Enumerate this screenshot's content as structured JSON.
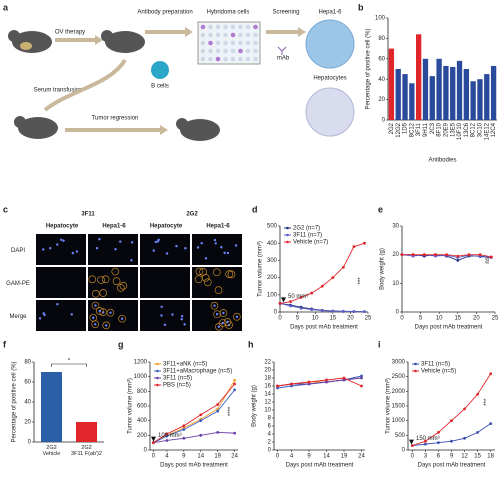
{
  "diagram": {
    "panel": "a",
    "labels": [
      "OV therapy",
      "Antibody preparation",
      "Hybridoma cells",
      "B cells",
      "Screening",
      "mAb",
      "Hepa1-6",
      "Hepatocytes",
      "Serum transfusion",
      "Tumor regression"
    ]
  },
  "images": {
    "panel": "c",
    "groups": [
      "3F11",
      "2G2"
    ],
    "columns": [
      "Hepatocyte",
      "Hepa1-6",
      "Hepatocyte",
      "Hepa1-6"
    ],
    "rows": [
      "DAPI",
      "GAM-PE",
      "Merge"
    ]
  },
  "chart_data": [
    {
      "panel": "b",
      "type": "bar",
      "ylabel": "Percentage of positive cell (%)",
      "xlabel": "Antibodies",
      "categories": [
        "2G2",
        "12G2",
        "1D5",
        "8C12",
        "3F11",
        "9H11",
        "2C3",
        "8F10",
        "20E9",
        "13E5",
        "10F10",
        "13C6",
        "8C12",
        "3C10",
        "14E12",
        "12C4"
      ],
      "values": [
        70,
        50,
        45,
        36,
        84,
        60,
        43,
        60,
        53,
        52,
        58,
        50,
        38,
        40,
        45,
        53
      ],
      "colors": [
        "#e0262b",
        "#2a4a9c",
        "#2a4a9c",
        "#2a4a9c",
        "#e0262b",
        "#2a4a9c",
        "#2a4a9c",
        "#2a4a9c",
        "#2a4a9c",
        "#2a4a9c",
        "#2a4a9c",
        "#2a4a9c",
        "#2a4a9c",
        "#2a4a9c",
        "#2a4a9c",
        "#2a4a9c"
      ],
      "ylim": [
        0,
        100
      ],
      "yticks": [
        0,
        20,
        40,
        60,
        80,
        100
      ]
    },
    {
      "panel": "d",
      "type": "line",
      "ylabel": "Tumor volume (mm³)",
      "xlabel": "Days post mAb treatment",
      "x": [
        0,
        3,
        6,
        9,
        12,
        15,
        18,
        21,
        24
      ],
      "series": [
        {
          "name": "2G2 (n=7)",
          "color": "#1f2d7a",
          "values": [
            50,
            40,
            28,
            18,
            10,
            6,
            4,
            3,
            2
          ]
        },
        {
          "name": "3F11 (n=7)",
          "color": "#5b5fc7",
          "values": [
            50,
            35,
            22,
            14,
            8,
            5,
            3,
            2,
            2
          ]
        },
        {
          "name": "Vehicle (n=7)",
          "color": "#e0262b",
          "values": [
            50,
            60,
            85,
            110,
            150,
            200,
            260,
            380,
            400
          ]
        }
      ],
      "xlim": [
        0,
        25
      ],
      "xticks": [
        0,
        5,
        10,
        15,
        20,
        25
      ],
      "ylim": [
        0,
        500
      ],
      "yticks": [
        0,
        100,
        200,
        300,
        400,
        500
      ],
      "legend": "upper left",
      "baseline_label": "50 mm³",
      "significance": "***"
    },
    {
      "panel": "e",
      "type": "line",
      "ylabel": "Body weight (g)",
      "xlabel": "Days post mAb treatment",
      "x": [
        0,
        3,
        6,
        9,
        12,
        15,
        18,
        21,
        24
      ],
      "series": [
        {
          "name": "2G2 (n=7)",
          "color": "#1f2d7a",
          "values": [
            20,
            20,
            19.5,
            20,
            19.5,
            18,
            19.5,
            19.5,
            19
          ]
        },
        {
          "name": "3F11 (n=7)",
          "color": "#5b5fc7",
          "values": [
            20,
            19.5,
            20,
            19.5,
            19.8,
            19,
            19.8,
            19.3,
            19
          ]
        },
        {
          "name": "Vehicle (n=7)",
          "color": "#e0262b",
          "values": [
            20,
            20,
            20,
            20,
            20,
            19.5,
            20,
            20,
            19.2
          ]
        }
      ],
      "xlim": [
        0,
        25
      ],
      "xticks": [
        0,
        5,
        10,
        15,
        20,
        25
      ],
      "ylim": [
        0,
        30
      ],
      "yticks": [
        0,
        10,
        20,
        30
      ],
      "significance": "ns"
    },
    {
      "panel": "f",
      "type": "bar",
      "ylabel": "Percentage of positive cell (%)",
      "categories": [
        "2G2\nVehicle",
        "2G2\n3F11 F(ab')2"
      ],
      "values": [
        70,
        20
      ],
      "colors": [
        "#2a5fa8",
        "#e0262b"
      ],
      "ylim": [
        0,
        80
      ],
      "yticks": [
        0,
        20,
        40,
        60,
        80
      ],
      "significance": "*"
    },
    {
      "panel": "g",
      "type": "line",
      "ylabel": "Tumor volume (mm³)",
      "xlabel": "Days post mAb treatment",
      "x": [
        0,
        4,
        9,
        14,
        19,
        24
      ],
      "series": [
        {
          "name": "3F11+aNK (n=5)",
          "color": "#f0a030",
          "values": [
            100,
            200,
            300,
            420,
            560,
            950
          ]
        },
        {
          "name": "3F11+aMacrophage (n=5)",
          "color": "#3a5fc0",
          "values": [
            100,
            190,
            280,
            400,
            530,
            820
          ]
        },
        {
          "name": "3F11 (n=5)",
          "color": "#6a3fa8",
          "values": [
            100,
            130,
            160,
            200,
            240,
            230
          ]
        },
        {
          "name": "PBS (n=5)",
          "color": "#e0262b",
          "values": [
            100,
            220,
            330,
            480,
            620,
            900
          ]
        }
      ],
      "xlim": [
        -1,
        25
      ],
      "xticks": [
        0,
        4,
        9,
        14,
        19,
        24
      ],
      "ylim": [
        0,
        1200
      ],
      "yticks": [
        0,
        200,
        400,
        600,
        800,
        1000,
        1200
      ],
      "legend": "upper left",
      "baseline_label": "100 mm³",
      "significance": "****"
    },
    {
      "panel": "h",
      "type": "line",
      "ylabel": "Body weight (g)",
      "xlabel": "Days post mAb treatment",
      "x": [
        0,
        4,
        9,
        14,
        19,
        24
      ],
      "series": [
        {
          "name": "3F11+aNK (n=5)",
          "color": "#f0a030",
          "values": [
            16,
            16.5,
            17,
            17,
            17.5,
            18.5
          ]
        },
        {
          "name": "3F11+aMacrophage (n=5)",
          "color": "#3a5fc0",
          "values": [
            15.5,
            16,
            16.5,
            17,
            17.5,
            18.5
          ]
        },
        {
          "name": "3F11 (n=5)",
          "color": "#6a3fa8",
          "values": [
            16,
            16.5,
            16.5,
            17,
            17.5,
            18
          ]
        },
        {
          "name": "PBS (n=5)",
          "color": "#e0262b",
          "values": [
            16,
            16.5,
            17,
            17.5,
            18,
            16
          ]
        }
      ],
      "xlim": [
        -1,
        25
      ],
      "xticks": [
        0,
        4,
        9,
        14,
        19,
        24
      ],
      "ylim": [
        0,
        22
      ],
      "yticks": [
        0,
        2,
        4,
        6,
        8,
        10,
        12,
        14,
        16,
        18,
        20,
        22
      ]
    },
    {
      "panel": "i",
      "type": "line",
      "ylabel": "Tumor volume (mm³)",
      "xlabel": "Days post mAb treatment",
      "x": [
        0,
        3,
        6,
        9,
        12,
        15,
        18
      ],
      "series": [
        {
          "name": "3F11 (n=5)",
          "color": "#3a4fb0",
          "values": [
            150,
            200,
            250,
            300,
            400,
            600,
            900
          ]
        },
        {
          "name": "Vehicle (n=5)",
          "color": "#e0262b",
          "values": [
            150,
            300,
            600,
            1000,
            1400,
            1900,
            2600
          ]
        }
      ],
      "xlim": [
        -1,
        19
      ],
      "xticks": [
        0,
        3,
        6,
        9,
        12,
        15,
        18
      ],
      "ylim": [
        0,
        3000
      ],
      "yticks": [
        0,
        500,
        1000,
        1500,
        2000,
        2500,
        3000
      ],
      "legend": "upper left",
      "baseline_label": "150 mm³",
      "significance": "***"
    }
  ]
}
